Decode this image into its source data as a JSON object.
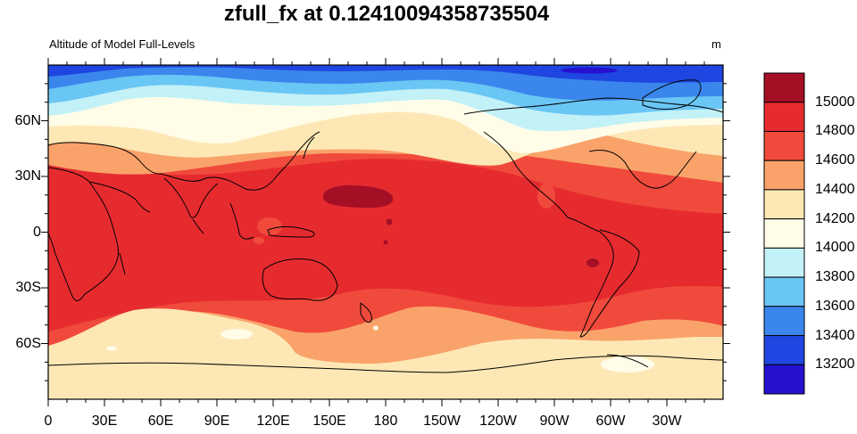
{
  "title": "zfull_fx at 0.12410094358735504",
  "subtitle_left": "Altitude of Model Full-Levels",
  "subtitle_right": "m",
  "lon_ticks": [
    "0",
    "30E",
    "60E",
    "90E",
    "120E",
    "150E",
    "180",
    "150W",
    "120W",
    "90W",
    "60W",
    "30W"
  ],
  "lat_ticks": [
    "60N",
    "30N",
    "0",
    "30S",
    "60S"
  ],
  "colorbar": {
    "labels": [
      "15000",
      "14800",
      "14600",
      "14400",
      "14200",
      "14000",
      "13800",
      "13600",
      "13400",
      "13200"
    ],
    "colors": [
      "#a50f26",
      "#e62b2f",
      "#f04a3c",
      "#f9a36b",
      "#fde8b5",
      "#fffce8",
      "#c3f1f8",
      "#6ac6f4",
      "#3a86ec",
      "#1f46e0",
      "#2511cf"
    ]
  },
  "colors": {
    "polar_north": "#3a86ec",
    "polar_south": "#fde8b5",
    "tropics": "#e62b2f",
    "coastline": "#000000"
  }
}
